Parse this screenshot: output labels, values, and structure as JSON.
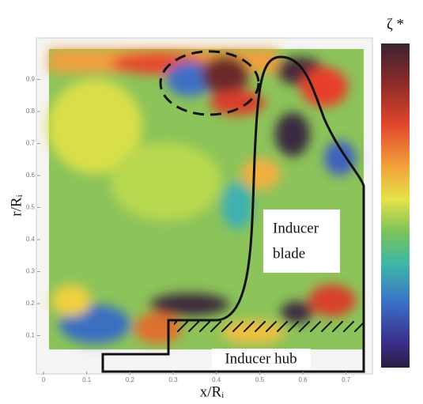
{
  "chart_data": {
    "type": "heatmap",
    "x_label": "x/Rᵢ",
    "y_label": "r/Rᵢ",
    "colorbar_label": "ζ *",
    "xlim": [
      0,
      0.75
    ],
    "xticks": [
      0,
      0.1,
      0.2,
      0.3,
      0.4,
      0.5,
      0.6,
      0.7
    ],
    "ylim": [
      0,
      1
    ],
    "yticks": [
      0.1,
      0.2,
      0.3,
      0.4,
      0.5,
      0.6,
      0.7,
      0.8,
      0.9
    ],
    "annotations": {
      "blade": [
        "Inducer",
        "blade"
      ],
      "hub": "Inducer hub"
    }
  }
}
